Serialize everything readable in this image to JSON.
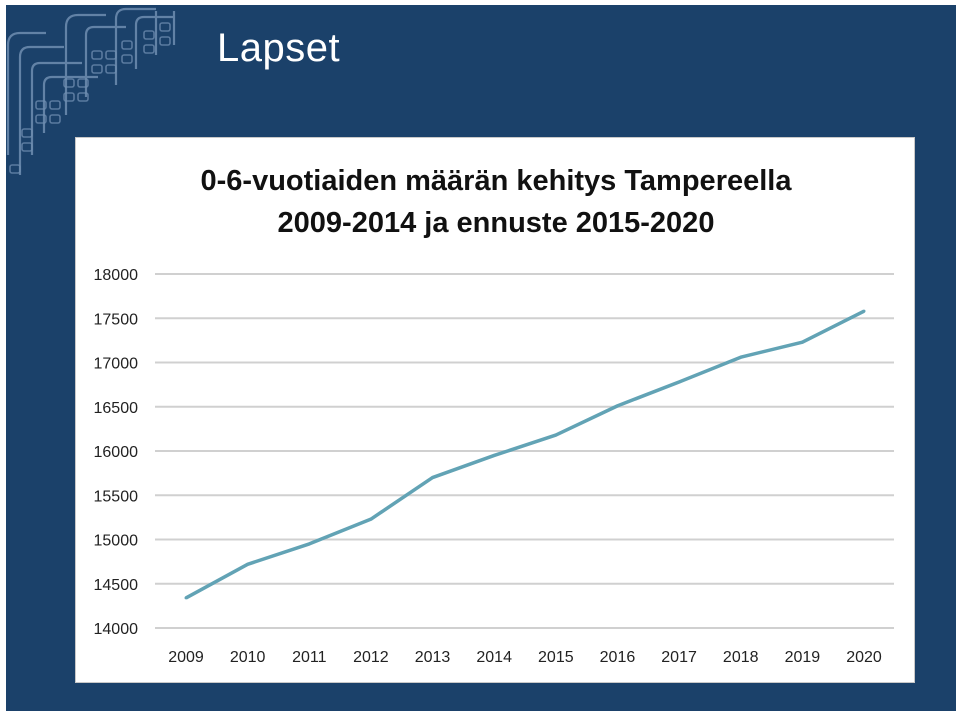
{
  "slide": {
    "title": "Lapset"
  },
  "colors": {
    "background": "#1b416a",
    "line": "#62a3b5",
    "grid": "#d0d0d0"
  },
  "chart_data": {
    "type": "line",
    "title_line1": "0-6-vuotiaiden määrän kehitys Tampereella",
    "title_line2": "2009-2014 ja ennuste 2015-2020",
    "categories": [
      "2009",
      "2010",
      "2011",
      "2012",
      "2013",
      "2014",
      "2015",
      "2016",
      "2017",
      "2018",
      "2019",
      "2020"
    ],
    "series": [
      {
        "values": [
          14340,
          14720,
          14950,
          15230,
          15700,
          15950,
          16180,
          16510,
          16780,
          17060,
          17230,
          17580
        ]
      }
    ],
    "ylim": [
      14000,
      18000
    ],
    "yticks": [
      14000,
      14500,
      15000,
      15500,
      16000,
      16500,
      17000,
      17500,
      18000
    ],
    "grid": true,
    "legend": "none"
  }
}
